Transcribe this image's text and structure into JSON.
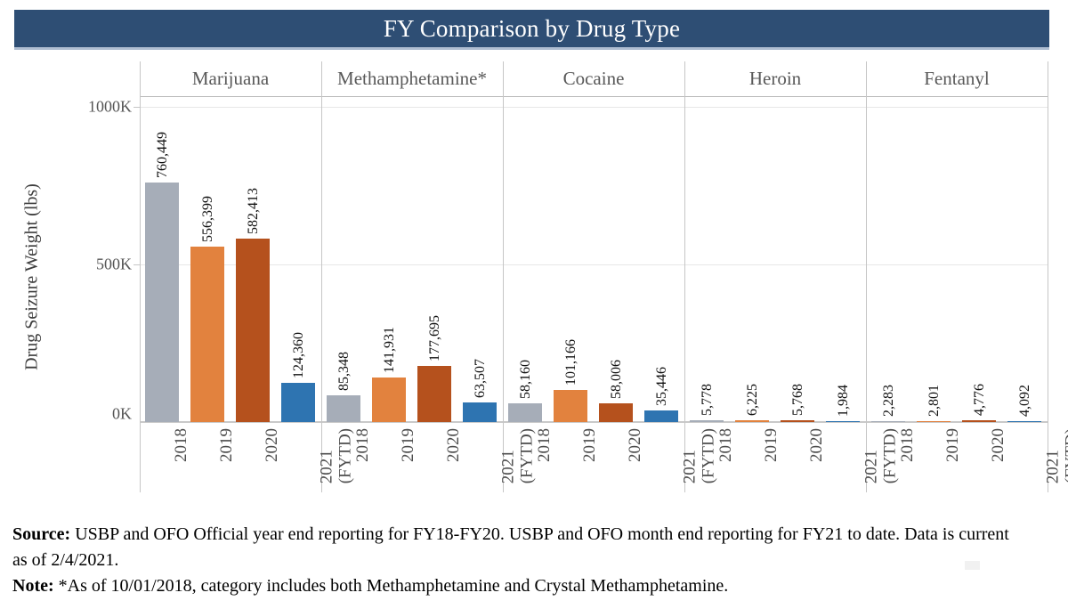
{
  "header": {
    "title": "FY Comparison by Drug Type",
    "bar_color": "#2e4e74"
  },
  "chart_data": {
    "type": "bar",
    "title": "FY Comparison by Drug Type",
    "ylabel": "Drug Seizure Weight (lbs)",
    "ylim": [
      0,
      1000000
    ],
    "y_ticks": [
      {
        "label": "0K",
        "value": 0
      },
      {
        "label": "500K",
        "value": 500000
      },
      {
        "label": "1000K",
        "value": 1000000
      }
    ],
    "grid": "horizontal-on",
    "legend_position": "none",
    "x_years": [
      "2018",
      "2019",
      "2020",
      "2021 (FYTD)"
    ],
    "x_tick_lines": [
      [
        "2018"
      ],
      [
        "2019"
      ],
      [
        "2020"
      ],
      [
        "2021",
        "(FYTD)"
      ]
    ],
    "year_colors": [
      "#a6adb8",
      "#e2823e",
      "#b5511d",
      "#2e74b1"
    ],
    "groups": [
      {
        "name": "Marijuana",
        "values": [
          760449,
          556399,
          582413,
          124360
        ],
        "labels": [
          "760,449",
          "556,399",
          "582,413",
          "124,360"
        ]
      },
      {
        "name": "Methamphetamine*",
        "values": [
          85348,
          141931,
          177695,
          63507
        ],
        "labels": [
          "85,348",
          "141,931",
          "177,695",
          "63,507"
        ]
      },
      {
        "name": "Cocaine",
        "values": [
          58160,
          101166,
          58006,
          35446
        ],
        "labels": [
          "58,160",
          "101,166",
          "58,006",
          "35,446"
        ]
      },
      {
        "name": "Heroin",
        "values": [
          5778,
          6225,
          5768,
          1984
        ],
        "labels": [
          "5,778",
          "6,225",
          "5,768",
          "1,984"
        ]
      },
      {
        "name": "Fentanyl",
        "values": [
          2283,
          2801,
          4776,
          4092
        ],
        "labels": [
          "2,283",
          "2,801",
          "4,776",
          "4,092"
        ]
      }
    ]
  },
  "footer": {
    "source_label": "Source:",
    "source_text_line1": " USBP and OFO Official year end reporting for FY18-FY20. USBP and OFO month end reporting for FY21 to date. Data is current",
    "source_text_line2": "as of 2/4/2021.",
    "note_label": "Note:",
    "note_text": " *As of 10/01/2018, category includes both Methamphetamine and Crystal Methamphetamine."
  }
}
